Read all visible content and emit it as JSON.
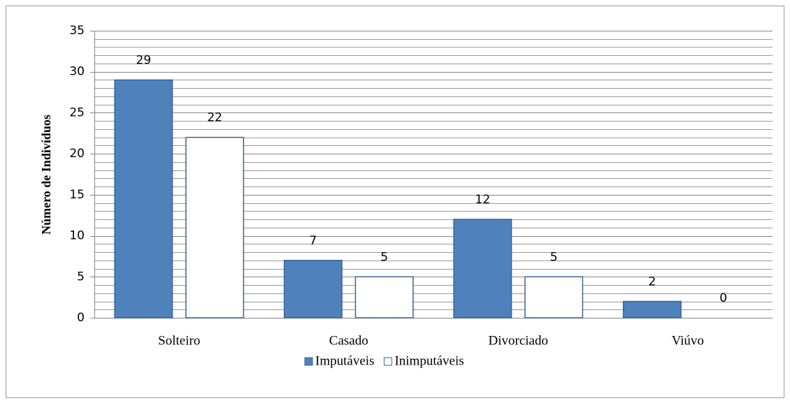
{
  "chart_data": {
    "type": "bar",
    "y_label": "Número de Indivíduos",
    "categories": [
      "Solteiro",
      "Casado",
      "Divorciado",
      "Viúvo"
    ],
    "series": [
      {
        "name": "Imputáveis",
        "color": "#4f81bd",
        "values": [
          29,
          7,
          12,
          2
        ]
      },
      {
        "name": "Inimputáveis",
        "color": "#ffffff",
        "values": [
          22,
          5,
          5,
          0
        ]
      }
    ],
    "ylim": [
      0,
      35
    ],
    "yticks": [
      0,
      5,
      10,
      15,
      20,
      25,
      30,
      35
    ],
    "grid": true,
    "minor_grid": 1,
    "legend": "bottom"
  }
}
